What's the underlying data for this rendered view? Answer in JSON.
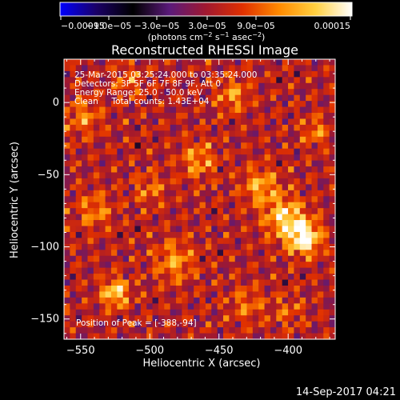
{
  "chart_data": {
    "type": "heatmap",
    "title": "Reconstructed RHESSI Image",
    "xlabel": "Heliocentric X (arcsec)",
    "ylabel": "Heliocentric Y (arcsec)",
    "xlim": [
      -562,
      -366
    ],
    "ylim": [
      -164,
      30
    ],
    "x_ticks": [
      -550,
      -500,
      -450,
      -400
    ],
    "x_tick_labels": [
      "−550",
      "−500",
      "−450",
      "−400"
    ],
    "y_ticks": [
      0,
      -50,
      -100,
      -150
    ],
    "y_tick_labels": [
      "0",
      "−50",
      "−100",
      "−150"
    ],
    "colorbar": {
      "vmin": -0.00015,
      "vmax": 0.00015,
      "tick_labels": [
        "−0.00015",
        "−9.0e−05",
        "−3.0e−05",
        "3.0e−05",
        "9.0e−05",
        "0.00015"
      ],
      "units": "(photons cm",
      "units_sup1": "−2",
      "units_mid": " s",
      "units_sup2": "−1",
      "units_mid2": " asec",
      "units_sup3": "−2",
      "units_end": ")",
      "colors": [
        "#0000ff",
        "#1a0066",
        "#000000",
        "#5a1a7a",
        "#a01830",
        "#e03000",
        "#ff8a00",
        "#ffd040",
        "#ffffff"
      ]
    },
    "info": [
      "25-Mar-2015 03:25:24.000 to 03:35:24.000",
      "Detectors: 3F 5F 6F 7F 8F 9F, Att 0",
      "Energy Range: 25.0 - 50.0 keV",
      "Clean     Total counts: 1.43E+04"
    ],
    "peak_label": "Position of Peak = [-388,-94]",
    "peak": [
      -388,
      -94
    ],
    "hot_spots": [
      {
        "x": -388,
        "y": -94,
        "amp": 0.00015,
        "sigma": 8
      },
      {
        "x": -402,
        "y": -80,
        "amp": 0.00011,
        "sigma": 10
      },
      {
        "x": -420,
        "y": -58,
        "amp": 8e-05,
        "sigma": 9
      },
      {
        "x": -380,
        "y": -20,
        "amp": 6e-05,
        "sigma": 7
      },
      {
        "x": -525,
        "y": -132,
        "amp": 0.00011,
        "sigma": 7
      },
      {
        "x": -482,
        "y": -110,
        "amp": 7e-05,
        "sigma": 10
      },
      {
        "x": -465,
        "y": -40,
        "amp": 7e-05,
        "sigma": 9
      },
      {
        "x": -440,
        "y": 5,
        "amp": 7e-05,
        "sigma": 8
      },
      {
        "x": -548,
        "y": -10,
        "amp": 6e-05,
        "sigma": 9
      },
      {
        "x": -540,
        "y": -75,
        "amp": 6e-05,
        "sigma": 9
      },
      {
        "x": -500,
        "y": -60,
        "amp": 5e-05,
        "sigma": 8
      },
      {
        "x": -430,
        "y": -140,
        "amp": 5e-05,
        "sigma": 9
      },
      {
        "x": -515,
        "y": 15,
        "amp": 5e-05,
        "sigma": 8
      },
      {
        "x": -400,
        "y": -145,
        "amp": 4e-05,
        "sigma": 8
      }
    ]
  },
  "footer": {
    "timestamp": "14-Sep-2017 04:21"
  }
}
